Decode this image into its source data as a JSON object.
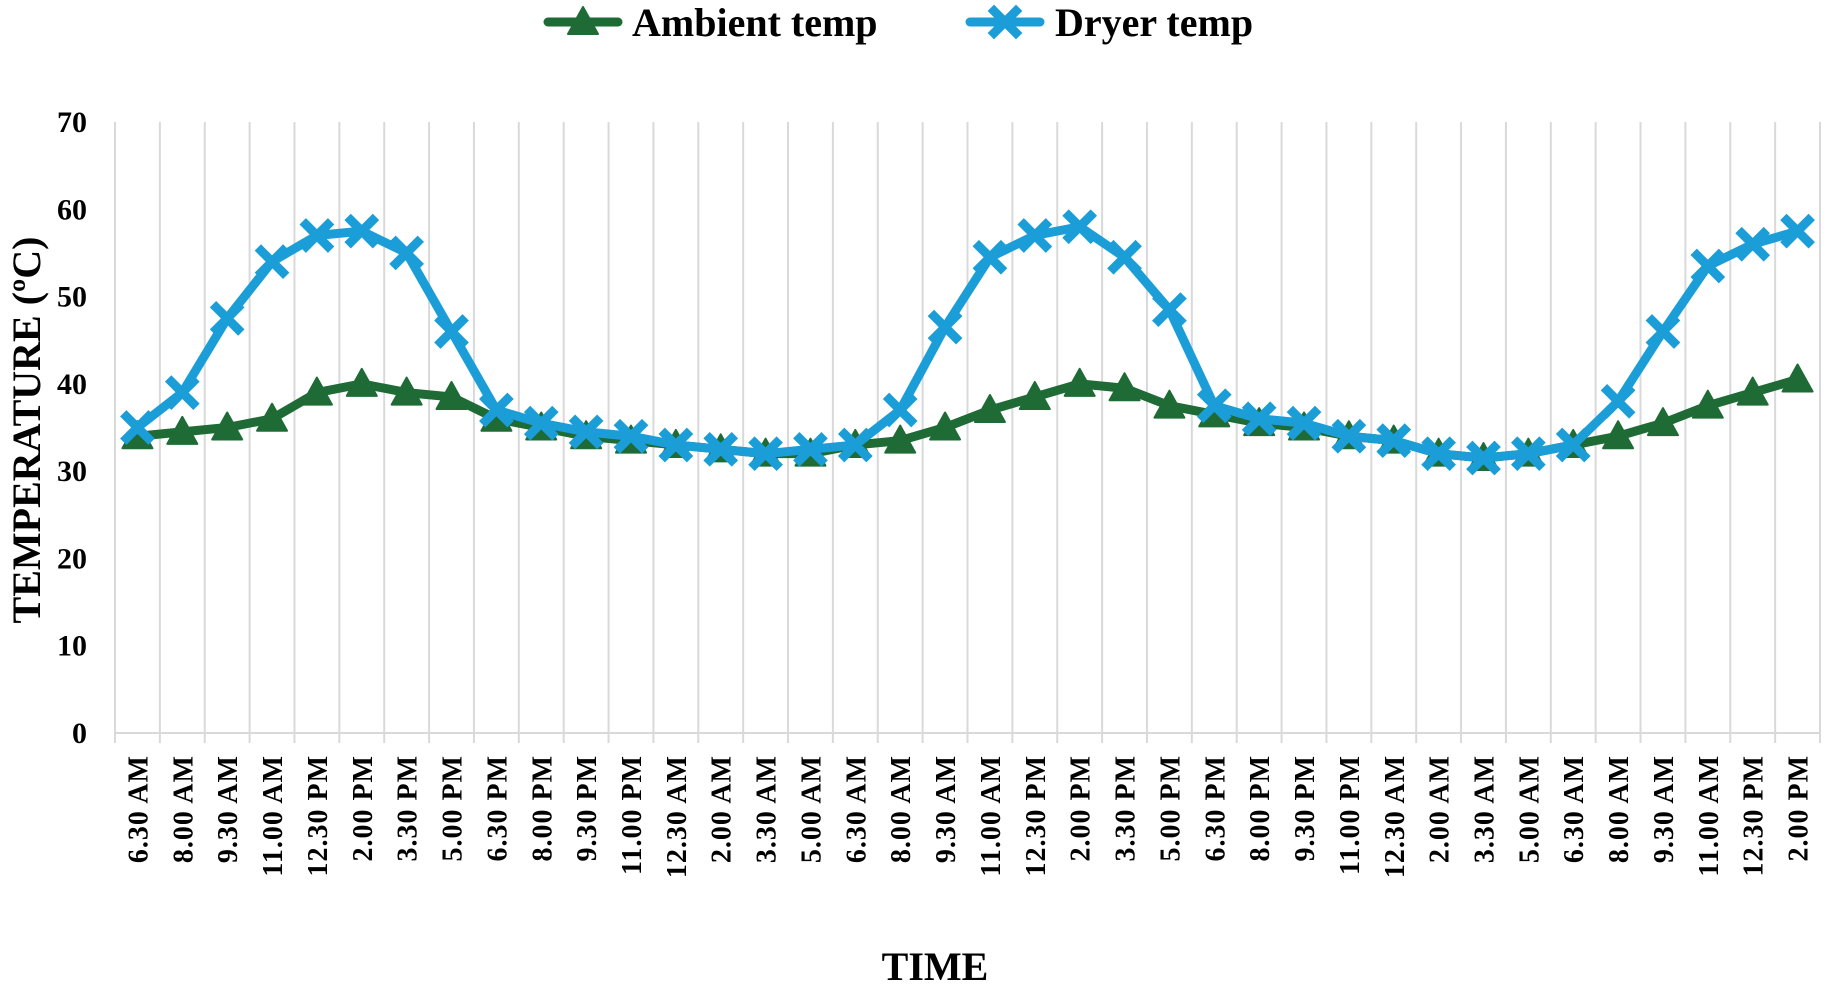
{
  "chart_data": {
    "type": "line",
    "title": "",
    "xlabel": "TIME",
    "ylabel": "TEMPERATURE (ºC)",
    "ylim": [
      0,
      70
    ],
    "yticks": [
      0,
      10,
      20,
      30,
      40,
      50,
      60,
      70
    ],
    "grid": "vertical",
    "legend_position": "top-center",
    "categories": [
      "6.30  AM",
      "8.00  AM",
      "9.30  AM",
      "11.00  AM",
      "12.30  PM",
      "2.00  PM",
      "3.30  PM",
      "5.00  PM",
      "6.30  PM",
      "8.00  PM",
      "9.30  PM",
      "11.00  PM",
      "12.30  AM",
      "2.00  AM",
      "3.30  AM",
      "5.00  AM",
      "6.30  AM",
      "8.00  AM",
      "9.30  AM",
      "11.00  AM",
      "12.30  PM",
      "2.00  PM",
      "3.30  PM",
      "5.00  PM",
      "6.30  PM",
      "8.00  PM",
      "9.30  PM",
      "11.00  PM",
      "12.30  AM",
      "2.00  AM",
      "3.30  AM",
      "5.00  AM",
      "6.30  AM",
      "8.00  AM",
      "9.30  AM",
      "11.00  AM",
      "12.30  PM",
      "2.00  PM"
    ],
    "series": [
      {
        "name": "Ambient temp",
        "color": "#1e6b35",
        "marker": "triangle",
        "values": [
          34,
          34.5,
          35,
          36,
          39,
          40,
          39,
          38.5,
          36,
          35,
          34,
          33.5,
          33,
          32.5,
          32,
          32,
          33,
          33.5,
          35,
          37,
          38.5,
          40,
          39.5,
          37.5,
          36.5,
          35.5,
          35,
          34,
          33.5,
          32,
          31.5,
          32,
          33,
          34,
          35.5,
          37.5,
          39,
          40.5
        ]
      },
      {
        "name": "Dryer temp",
        "color": "#1b9ed8",
        "marker": "x",
        "values": [
          35,
          39,
          47.5,
          54,
          57,
          57.5,
          55,
          46,
          37,
          35.5,
          34.5,
          34,
          33,
          32.5,
          32,
          32.5,
          33,
          37,
          46.5,
          54.5,
          57,
          58,
          54.5,
          48.5,
          37.5,
          36,
          35.5,
          34,
          33.5,
          32,
          31.5,
          32,
          33,
          38,
          46,
          53.5,
          56,
          57.5
        ]
      }
    ]
  }
}
